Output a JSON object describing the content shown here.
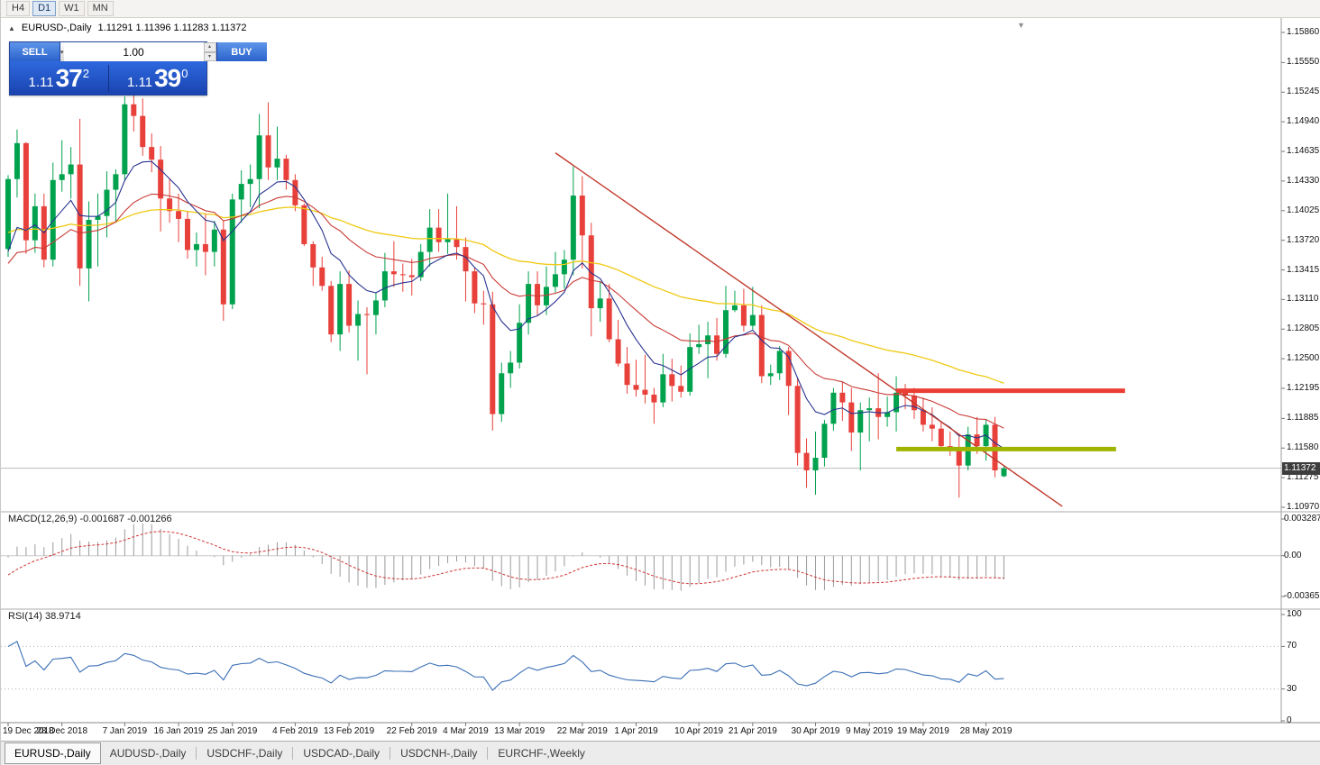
{
  "toolbar": {
    "periods": [
      {
        "label": "H4",
        "active": false
      },
      {
        "label": "D1",
        "active": true
      },
      {
        "label": "W1",
        "active": false
      },
      {
        "label": "MN",
        "active": false
      }
    ]
  },
  "chart": {
    "title_symbol": "EURUSD-,Daily",
    "title_ohlc": "1.11291 1.11396 1.11283 1.11372"
  },
  "trade_panel": {
    "sell_label": "SELL",
    "buy_label": "BUY",
    "volume": "1.00",
    "sell_price_small": "1.11",
    "sell_price_big": "37",
    "sell_price_sup": "2",
    "buy_price_small": "1.11",
    "buy_price_big": "39",
    "buy_price_sup": "0"
  },
  "price_axis": {
    "labels": [
      "1.15860",
      "1.15550",
      "1.15245",
      "1.14940",
      "1.14635",
      "1.14330",
      "1.14025",
      "1.13720",
      "1.13415",
      "1.13110",
      "1.12805",
      "1.12500",
      "1.12195",
      "1.11885",
      "1.11580",
      "1.11275",
      "1.10970"
    ],
    "current_price": "1.11372"
  },
  "indicators": {
    "macd": {
      "label": "MACD(12,26,9) -0.001687 -0.001266",
      "axis": [
        {
          "label": "0.003287",
          "value": 0.003287
        },
        {
          "label": "0.00",
          "value": 0
        },
        {
          "label": "-0.003655",
          "value": -0.003655
        }
      ]
    },
    "rsi": {
      "label": "RSI(14) 38.9714",
      "axis": [
        {
          "label": "100",
          "value": 100
        },
        {
          "label": "70",
          "value": 70
        },
        {
          "label": "30",
          "value": 30
        },
        {
          "label": "0",
          "value": 0
        }
      ],
      "levels": [
        70,
        30
      ]
    }
  },
  "time_axis": [
    {
      "label": "19 Dec 2018",
      "bar": 0
    },
    {
      "label": "28 Dec 2018",
      "bar": 6
    },
    {
      "label": "7 Jan 2019",
      "bar": 13
    },
    {
      "label": "16 Jan 2019",
      "bar": 19
    },
    {
      "label": "25 Jan 2019",
      "bar": 25
    },
    {
      "label": "4 Feb 2019",
      "bar": 32
    },
    {
      "label": "13 Feb 2019",
      "bar": 38
    },
    {
      "label": "22 Feb 2019",
      "bar": 45
    },
    {
      "label": "4 Mar 2019",
      "bar": 51
    },
    {
      "label": "13 Mar 2019",
      "bar": 57
    },
    {
      "label": "22 Mar 2019",
      "bar": 64
    },
    {
      "label": "1 Apr 2019",
      "bar": 70
    },
    {
      "label": "10 Apr 2019",
      "bar": 77
    },
    {
      "label": "21 Apr 2019",
      "bar": 83
    },
    {
      "label": "30 Apr 2019",
      "bar": 90
    },
    {
      "label": "9 May 2019",
      "bar": 96
    },
    {
      "label": "19 May 2019",
      "bar": 102
    },
    {
      "label": "28 May 2019",
      "bar": 109
    }
  ],
  "tabs": [
    {
      "label": "EURUSD-,Daily",
      "active": true
    },
    {
      "label": "AUDUSD-,Daily",
      "active": false
    },
    {
      "label": "USDCHF-,Daily",
      "active": false
    },
    {
      "label": "USDCAD-,Daily",
      "active": false
    },
    {
      "label": "USDCNH-,Daily",
      "active": false
    },
    {
      "label": "EURCHF-,Weekly",
      "active": false
    }
  ],
  "chart_data": {
    "type": "candlestick",
    "symbol": "EURUSD-",
    "timeframe": "Daily",
    "bid": 1.11372,
    "price_range": {
      "max": 1.1586,
      "min": 1.1097
    },
    "colors": {
      "bull": "#00A24E",
      "bear": "#E8403A",
      "ma_fast": "#28348F",
      "ma_med": "#C93A36",
      "ma_slow": "#EFC913",
      "trendline": "#C0392B",
      "resistance": "#EA3E34",
      "support": "#9FB400",
      "macd_hist": "#9A9A9A",
      "macd_signal": "#CF3434",
      "rsi_line": "#3B6FB5"
    },
    "candles": [
      [
        1.1363,
        1.1439,
        1.1355,
        1.1435
      ],
      [
        1.1435,
        1.1486,
        1.1416,
        1.1472
      ],
      [
        1.1472,
        1.1473,
        1.1358,
        1.1372
      ],
      [
        1.1372,
        1.142,
        1.1359,
        1.1407
      ],
      [
        1.1407,
        1.142,
        1.1344,
        1.1352
      ],
      [
        1.1352,
        1.1452,
        1.1345,
        1.1434
      ],
      [
        1.1434,
        1.1475,
        1.1422,
        1.144
      ],
      [
        1.144,
        1.1468,
        1.1415,
        1.145
      ],
      [
        1.145,
        1.1497,
        1.1325,
        1.1343
      ],
      [
        1.1343,
        1.1412,
        1.1309,
        1.1393
      ],
      [
        1.1393,
        1.142,
        1.1345,
        1.1397
      ],
      [
        1.1397,
        1.1443,
        1.1375,
        1.1424
      ],
      [
        1.1424,
        1.1445,
        1.139,
        1.144
      ],
      [
        1.144,
        1.152,
        1.1434,
        1.1512
      ],
      [
        1.1512,
        1.1522,
        1.1484,
        1.15
      ],
      [
        1.15,
        1.1518,
        1.1459,
        1.1468
      ],
      [
        1.1468,
        1.1482,
        1.1442,
        1.1455
      ],
      [
        1.1455,
        1.1469,
        1.1381,
        1.1415
      ],
      [
        1.1415,
        1.1436,
        1.139,
        1.1402
      ],
      [
        1.1402,
        1.142,
        1.137,
        1.1394
      ],
      [
        1.1394,
        1.1402,
        1.1353,
        1.1362
      ],
      [
        1.1362,
        1.138,
        1.1345,
        1.1368
      ],
      [
        1.1368,
        1.14,
        1.1336,
        1.136
      ],
      [
        1.136,
        1.1392,
        1.1345,
        1.1383
      ],
      [
        1.1383,
        1.1392,
        1.1289,
        1.1306
      ],
      [
        1.1306,
        1.142,
        1.1301,
        1.1414
      ],
      [
        1.1414,
        1.1444,
        1.139,
        1.143
      ],
      [
        1.143,
        1.145,
        1.1406,
        1.1435
      ],
      [
        1.1435,
        1.1502,
        1.1405,
        1.148
      ],
      [
        1.148,
        1.1514,
        1.1434,
        1.1447
      ],
      [
        1.1447,
        1.1489,
        1.1434,
        1.1456
      ],
      [
        1.1456,
        1.146,
        1.1424,
        1.1434
      ],
      [
        1.1434,
        1.144,
        1.1402,
        1.1408
      ],
      [
        1.1408,
        1.141,
        1.1366,
        1.1368
      ],
      [
        1.1368,
        1.1371,
        1.1325,
        1.1344
      ],
      [
        1.1344,
        1.1355,
        1.132,
        1.1325
      ],
      [
        1.1325,
        1.133,
        1.1267,
        1.1275
      ],
      [
        1.1275,
        1.134,
        1.1258,
        1.1327
      ],
      [
        1.1327,
        1.1341,
        1.1277,
        1.1284
      ],
      [
        1.1284,
        1.131,
        1.1248,
        1.1296
      ],
      [
        1.1296,
        1.1303,
        1.1234,
        1.1295
      ],
      [
        1.1295,
        1.1318,
        1.1275,
        1.131
      ],
      [
        1.131,
        1.1359,
        1.1303,
        1.134
      ],
      [
        1.134,
        1.1371,
        1.1324,
        1.1337
      ],
      [
        1.1337,
        1.1348,
        1.1319,
        1.1336
      ],
      [
        1.1336,
        1.1353,
        1.1315,
        1.1334
      ],
      [
        1.1334,
        1.1368,
        1.133,
        1.136
      ],
      [
        1.136,
        1.1404,
        1.1345,
        1.1385
      ],
      [
        1.1385,
        1.1404,
        1.136,
        1.137
      ],
      [
        1.137,
        1.142,
        1.1358,
        1.1373
      ],
      [
        1.1373,
        1.1407,
        1.1352,
        1.1365
      ],
      [
        1.1365,
        1.1375,
        1.1309,
        1.134
      ],
      [
        1.134,
        1.1344,
        1.1297,
        1.1307
      ],
      [
        1.1307,
        1.132,
        1.1285,
        1.1306
      ],
      [
        1.1306,
        1.1319,
        1.1176,
        1.1193
      ],
      [
        1.1193,
        1.1246,
        1.1185,
        1.1235
      ],
      [
        1.1235,
        1.1258,
        1.122,
        1.1246
      ],
      [
        1.1246,
        1.1306,
        1.124,
        1.1287
      ],
      [
        1.1287,
        1.134,
        1.1275,
        1.1327
      ],
      [
        1.1327,
        1.134,
        1.1294,
        1.1305
      ],
      [
        1.1305,
        1.1345,
        1.1295,
        1.1324
      ],
      [
        1.1324,
        1.136,
        1.1318,
        1.1337
      ],
      [
        1.1337,
        1.1362,
        1.1322,
        1.1352
      ],
      [
        1.1352,
        1.1448,
        1.1336,
        1.1418
      ],
      [
        1.1418,
        1.1438,
        1.1343,
        1.1377
      ],
      [
        1.1377,
        1.139,
        1.1273,
        1.1302
      ],
      [
        1.1302,
        1.133,
        1.1288,
        1.1312
      ],
      [
        1.1312,
        1.1327,
        1.1267,
        1.127
      ],
      [
        1.127,
        1.129,
        1.1242,
        1.1245
      ],
      [
        1.1245,
        1.1262,
        1.1214,
        1.1223
      ],
      [
        1.1223,
        1.1249,
        1.1211,
        1.1218
      ],
      [
        1.1218,
        1.1254,
        1.1204,
        1.1213
      ],
      [
        1.1213,
        1.122,
        1.1183,
        1.1205
      ],
      [
        1.1205,
        1.1255,
        1.12,
        1.1234
      ],
      [
        1.1234,
        1.125,
        1.1206,
        1.1222
      ],
      [
        1.1222,
        1.1243,
        1.121,
        1.1216
      ],
      [
        1.1216,
        1.1276,
        1.1212,
        1.1262
      ],
      [
        1.1262,
        1.1285,
        1.1255,
        1.1265
      ],
      [
        1.1265,
        1.1288,
        1.123,
        1.1274
      ],
      [
        1.1274,
        1.1292,
        1.1248,
        1.1255
      ],
      [
        1.1255,
        1.1325,
        1.1251,
        1.13
      ],
      [
        1.13,
        1.132,
        1.1298,
        1.1305
      ],
      [
        1.1305,
        1.1322,
        1.1278,
        1.1284
      ],
      [
        1.1284,
        1.1324,
        1.128,
        1.1295
      ],
      [
        1.1295,
        1.1305,
        1.1225,
        1.1232
      ],
      [
        1.1232,
        1.1244,
        1.1223,
        1.1235
      ],
      [
        1.1235,
        1.1263,
        1.1228,
        1.1258
      ],
      [
        1.1258,
        1.1262,
        1.1192,
        1.1222
      ],
      [
        1.1222,
        1.123,
        1.114,
        1.1153
      ],
      [
        1.1153,
        1.1168,
        1.1117,
        1.1135
      ],
      [
        1.1135,
        1.1175,
        1.111,
        1.1148
      ],
      [
        1.1148,
        1.1187,
        1.1139,
        1.1183
      ],
      [
        1.1183,
        1.122,
        1.1176,
        1.1215
      ],
      [
        1.1215,
        1.1226,
        1.1186,
        1.1205
      ],
      [
        1.1205,
        1.122,
        1.1155,
        1.1174
      ],
      [
        1.1174,
        1.1205,
        1.1135,
        1.1197
      ],
      [
        1.1197,
        1.121,
        1.1165,
        1.1199
      ],
      [
        1.1199,
        1.1235,
        1.1167,
        1.119
      ],
      [
        1.119,
        1.1211,
        1.118,
        1.1195
      ],
      [
        1.1195,
        1.1232,
        1.1175,
        1.1215
      ],
      [
        1.1215,
        1.1224,
        1.1198,
        1.1212
      ],
      [
        1.1212,
        1.122,
        1.1188,
        1.1197
      ],
      [
        1.1197,
        1.121,
        1.1175,
        1.1182
      ],
      [
        1.1182,
        1.12,
        1.1165,
        1.1178
      ],
      [
        1.1178,
        1.1186,
        1.1155,
        1.116
      ],
      [
        1.116,
        1.1175,
        1.115,
        1.1158
      ],
      [
        1.1158,
        1.117,
        1.1107,
        1.114
      ],
      [
        1.114,
        1.118,
        1.1135,
        1.1172
      ],
      [
        1.1172,
        1.119,
        1.1152,
        1.116
      ],
      [
        1.116,
        1.1188,
        1.1145,
        1.1182
      ],
      [
        1.1182,
        1.119,
        1.1128,
        1.1135
      ],
      [
        1.1129,
        1.114,
        1.1128,
        1.1137
      ]
    ],
    "history_closes": [
      1.1462,
      1.1455,
      1.1448,
      1.1452,
      1.144,
      1.1435,
      1.1442,
      1.143,
      1.1425,
      1.1418,
      1.1425,
      1.1432,
      1.142,
      1.1412,
      1.1405,
      1.1398,
      1.1408,
      1.14,
      1.1392,
      1.1385,
      1.1342,
      1.133,
      1.1318,
      1.1305,
      1.1296,
      1.1288,
      1.1275,
      1.1282,
      1.1295,
      1.1288,
      1.1302,
      1.1315,
      1.1308,
      1.1322,
      1.1335,
      1.1328,
      1.1342,
      1.135,
      1.1358,
      1.1352
    ],
    "moving_averages": [
      {
        "period": 8,
        "color_key": "ma_fast"
      },
      {
        "period": 21,
        "color_key": "ma_med"
      },
      {
        "period": 55,
        "color_key": "ma_slow"
      }
    ],
    "trendline": {
      "bar1": 61,
      "price1": 1.1462,
      "bar2": 117.5,
      "price2": 1.1098
    },
    "hlines": [
      {
        "price": 1.1217,
        "bar1": 99,
        "bar2": 124.5,
        "color_key": "resistance"
      },
      {
        "price": 1.1157,
        "bar1": 99,
        "bar2": 123.5,
        "color_key": "support"
      }
    ],
    "macd": {
      "fast": 12,
      "slow": 26,
      "signal": 9,
      "scale_max": 0.003287,
      "scale_min": -0.003655
    },
    "rsi": {
      "period": 14,
      "scale_max": 100,
      "scale_min": 0
    }
  }
}
